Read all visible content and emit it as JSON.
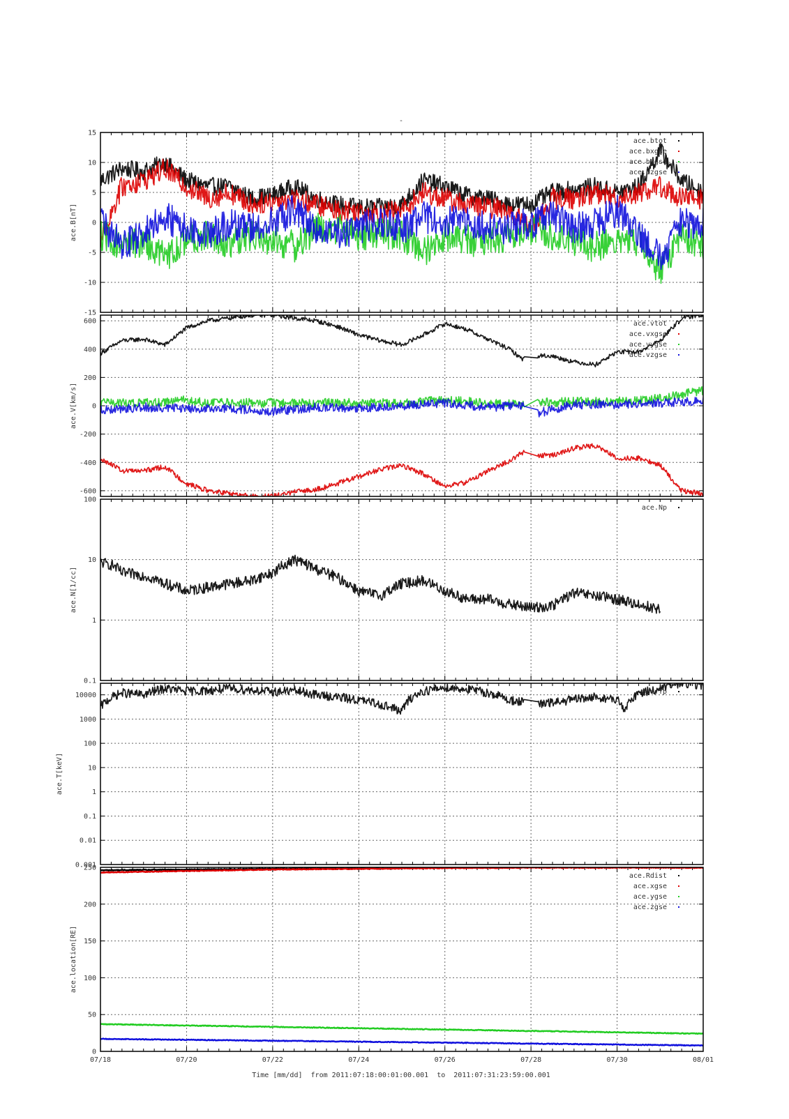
{
  "page": {
    "top_marker": "-",
    "footer": {
      "prefix": "Time [mm/dd]",
      "from_word": "from",
      "from_value": "2011:07:18:00:01:00.001",
      "to_word": "to",
      "to_value": "2011:07:31:23:59:00.001"
    }
  },
  "colors": {
    "black": "#000000",
    "red": "#dd0000",
    "green": "#22cc22",
    "blue": "#1111dd",
    "grid": "#666666"
  },
  "chart_data": [
    {
      "type": "scatter",
      "ylabel": "ace.B[nT]",
      "xlim": [
        "07/18",
        "08/01"
      ],
      "xticks": [
        "07/18",
        "07/20",
        "07/22",
        "07/24",
        "07/26",
        "07/28",
        "07/30",
        "08/01"
      ],
      "yscale": "linear",
      "ylim": [
        -15,
        15
      ],
      "yticks": [
        {
          "v": 15,
          "label": "15"
        },
        {
          "v": 10,
          "label": "10"
        },
        {
          "v": 5,
          "label": "5"
        },
        {
          "v": 0,
          "label": "0"
        },
        {
          "v": -5,
          "label": "-5"
        },
        {
          "v": -10,
          "label": "-10"
        },
        {
          "v": -15,
          "label": "-15"
        }
      ],
      "legend_position": "top-right",
      "series": [
        {
          "name": "ace.btot",
          "color": "black",
          "x": [
            0,
            0.5,
            1,
            1.5,
            2,
            2.5,
            3,
            3.5,
            4,
            4.5,
            5,
            5.5,
            6,
            6.5,
            7,
            7.5,
            8,
            8.5,
            9,
            9.5,
            10,
            10.5,
            11,
            11.5,
            12,
            12.5,
            13,
            13.5,
            14
          ],
          "y": [
            7,
            9,
            8.5,
            10,
            7,
            6,
            6,
            4,
            4.5,
            6,
            4,
            3,
            2.5,
            2.5,
            3,
            7,
            6,
            4.5,
            4,
            3,
            3,
            5,
            5.5,
            6,
            5,
            6,
            12,
            7,
            5
          ]
        },
        {
          "name": "ace.bxgse",
          "color": "red",
          "x": [
            0,
            0.5,
            1,
            1.5,
            2,
            2.5,
            3,
            3.5,
            4,
            4.5,
            5,
            5.5,
            6,
            6.5,
            7,
            7.5,
            8,
            8.5,
            9,
            9.5,
            10,
            10.5,
            11,
            11.5,
            12,
            12.5,
            13,
            13.5,
            14
          ],
          "y": [
            -3,
            6,
            7,
            9,
            6,
            4,
            5,
            3,
            3.5,
            4,
            3,
            2,
            2,
            1.5,
            2,
            5,
            4,
            3,
            2.5,
            2,
            -1,
            4,
            4,
            5,
            4,
            5,
            6,
            4,
            4
          ]
        },
        {
          "name": "ace.bygse",
          "color": "green",
          "x": [
            0,
            0.5,
            1,
            1.5,
            2,
            2.5,
            3,
            3.5,
            4,
            4.5,
            5,
            5.5,
            6,
            6.5,
            7,
            7.5,
            8,
            8.5,
            9,
            9.5,
            10,
            10.5,
            11,
            11.5,
            12,
            12.5,
            13,
            13.5,
            14
          ],
          "y": [
            -2,
            -4,
            -3,
            -6,
            -3,
            -2,
            -4,
            -2,
            -3,
            -4,
            -1,
            -1,
            -2,
            -2,
            -2,
            -5,
            -2,
            -3,
            -3,
            -2,
            -1,
            -2,
            -3,
            -4,
            -3,
            -3,
            -8,
            -2,
            -4
          ]
        },
        {
          "name": "ace.bzgse",
          "color": "blue",
          "x": [
            0,
            0.5,
            1,
            1.5,
            2,
            2.5,
            3,
            3.5,
            4,
            4.5,
            5,
            5.5,
            6,
            6.5,
            7,
            7.5,
            8,
            8.5,
            9,
            9.5,
            10,
            10.5,
            11,
            11.5,
            12,
            12.5,
            13,
            13.5,
            14
          ],
          "y": [
            0,
            -4,
            -2,
            1,
            -1,
            -2,
            0,
            -1,
            0,
            2,
            -1,
            -2,
            -1,
            0,
            -1,
            1,
            0,
            0,
            -1,
            -1,
            0,
            1,
            -1,
            0,
            2,
            -2,
            -6,
            0,
            0
          ]
        }
      ]
    },
    {
      "type": "scatter",
      "ylabel": "ace.V[km/s]",
      "xlim": [
        "07/18",
        "08/01"
      ],
      "xticks": [
        "07/18",
        "07/20",
        "07/22",
        "07/24",
        "07/26",
        "07/28",
        "07/30",
        "08/01"
      ],
      "yscale": "linear",
      "ylim": [
        -640,
        640
      ],
      "yticks": [
        {
          "v": 600,
          "label": "600"
        },
        {
          "v": 400,
          "label": "400"
        },
        {
          "v": 200,
          "label": "200"
        },
        {
          "v": 0,
          "label": "0"
        },
        {
          "v": -200,
          "label": "-200"
        },
        {
          "v": -400,
          "label": "-400"
        },
        {
          "v": -600,
          "label": "-600"
        }
      ],
      "legend_position": "top-right",
      "series": [
        {
          "name": "ace.vtot",
          "color": "black",
          "x": [
            0,
            0.5,
            1,
            1.5,
            2,
            2.5,
            3,
            3.5,
            4,
            4.5,
            5,
            5.5,
            6,
            6.5,
            7,
            7.5,
            8,
            8.5,
            9,
            9.5,
            9.8,
            10.2,
            10.5,
            11,
            11.5,
            12,
            12.5,
            13,
            13.5,
            14
          ],
          "y": [
            370,
            460,
            470,
            430,
            550,
            600,
            620,
            640,
            640,
            620,
            600,
            560,
            500,
            460,
            430,
            500,
            580,
            540,
            470,
            400,
            330,
            355,
            350,
            310,
            290,
            380,
            380,
            460,
            620,
            640
          ]
        },
        {
          "name": "ace.vxgse",
          "color": "red",
          "x": [
            0,
            0.5,
            1,
            1.5,
            2,
            2.5,
            3,
            3.5,
            4,
            4.5,
            5,
            5.5,
            6,
            6.5,
            7,
            7.5,
            8,
            8.5,
            9,
            9.5,
            9.8,
            10.2,
            10.5,
            11,
            11.5,
            12,
            12.5,
            13,
            13.5,
            14
          ],
          "y": [
            -370,
            -460,
            -460,
            -430,
            -550,
            -600,
            -620,
            -640,
            -640,
            -610,
            -590,
            -550,
            -500,
            -450,
            -420,
            -480,
            -570,
            -540,
            -460,
            -390,
            -330,
            -350,
            -350,
            -300,
            -280,
            -370,
            -370,
            -420,
            -600,
            -620
          ]
        },
        {
          "name": "ace.vygse",
          "color": "green",
          "x": [
            0,
            1,
            2,
            2.5,
            3,
            4,
            5,
            6,
            7,
            8,
            9,
            9.8,
            10.2,
            11,
            12,
            13,
            14
          ],
          "y": [
            20,
            20,
            40,
            20,
            20,
            20,
            20,
            20,
            20,
            40,
            20,
            10,
            20,
            30,
            30,
            50,
            110
          ]
        },
        {
          "name": "ace.vzgse",
          "color": "blue",
          "x": [
            0,
            1,
            2,
            3,
            4,
            5,
            6,
            7,
            8,
            9,
            9.8,
            10.2,
            11,
            12,
            13,
            14
          ],
          "y": [
            -30,
            -10,
            -20,
            -20,
            -40,
            -10,
            -20,
            0,
            20,
            -10,
            0,
            -50,
            10,
            10,
            20,
            40
          ]
        }
      ]
    },
    {
      "type": "scatter",
      "ylabel": "ace.N[1/cc]",
      "xlim": [
        "07/18",
        "08/01"
      ],
      "xticks": [
        "07/18",
        "07/20",
        "07/22",
        "07/24",
        "07/26",
        "07/28",
        "07/30",
        "08/01"
      ],
      "yscale": "log",
      "ylim": [
        0.1,
        100
      ],
      "yticks": [
        {
          "v": 100,
          "label": "100"
        },
        {
          "v": 10,
          "label": "10"
        },
        {
          "v": 1,
          "label": "1"
        },
        {
          "v": 0.1,
          "label": "0.1"
        }
      ],
      "legend_position": "top-right",
      "series": [
        {
          "name": "ace.Np",
          "color": "black",
          "x": [
            0,
            0.3,
            0.5,
            1,
            1.5,
            2,
            2.5,
            3,
            3.5,
            4,
            4.5,
            5,
            5.5,
            6,
            6.5,
            7,
            7.5,
            8,
            8.5,
            9,
            9.5,
            10,
            10.5,
            11,
            11.5,
            12,
            12.5,
            13
          ],
          "y": [
            9,
            8,
            6,
            5.5,
            4,
            3,
            3.5,
            4,
            4.5,
            6,
            10,
            7,
            5,
            3,
            2.5,
            4,
            4.5,
            3,
            2.2,
            2.2,
            1.8,
            1.6,
            1.7,
            2.8,
            2.5,
            2.2,
            1.8,
            1.5
          ]
        }
      ]
    },
    {
      "type": "scatter",
      "ylabel": "ace.T[keV]",
      "xlim": [
        "07/18",
        "08/01"
      ],
      "xticks": [
        "07/18",
        "07/20",
        "07/22",
        "07/24",
        "07/26",
        "07/28",
        "07/30",
        "08/01"
      ],
      "yscale": "log",
      "ylim": [
        0.001,
        30000
      ],
      "yticks": [
        {
          "v": 10000,
          "label": "10000"
        },
        {
          "v": 1000,
          "label": "1000"
        },
        {
          "v": 100,
          "label": "100"
        },
        {
          "v": 10,
          "label": "10"
        },
        {
          "v": 1,
          "label": "1"
        },
        {
          "v": 0.1,
          "label": "0.1"
        },
        {
          "v": 0.01,
          "label": "0.01"
        },
        {
          "v": 0.001,
          "label": "0.001"
        }
      ],
      "legend_position": "top-right",
      "series": [
        {
          "name": "ace.Tp",
          "color": "black",
          "x": [
            0,
            0.5,
            1,
            1.5,
            2,
            2.5,
            3,
            3.5,
            4,
            4.5,
            5,
            5.5,
            6,
            6.5,
            7,
            7.5,
            8,
            8.5,
            9,
            9.5,
            10.2,
            10.6,
            11.5,
            12,
            12.2,
            12.5,
            13,
            13.5,
            14
          ],
          "y": [
            3000,
            12000,
            10000,
            18000,
            14000,
            15000,
            18000,
            16000,
            13000,
            15000,
            10000,
            8000,
            6000,
            4000,
            2000,
            14000,
            20000,
            17000,
            12000,
            6000,
            4000,
            5000,
            8000,
            6000,
            2000,
            12000,
            17000,
            30000,
            25000
          ]
        }
      ]
    },
    {
      "type": "scatter",
      "ylabel": "ace.location[RE]",
      "xlabel": "Time [mm/dd]",
      "xlim": [
        "07/18",
        "08/01"
      ],
      "xticks": [
        "07/18",
        "07/20",
        "07/22",
        "07/24",
        "07/26",
        "07/28",
        "07/30",
        "08/01"
      ],
      "yscale": "linear",
      "ylim": [
        0,
        250
      ],
      "yticks": [
        {
          "v": 250,
          "label": "250"
        },
        {
          "v": 200,
          "label": "200"
        },
        {
          "v": 150,
          "label": "150"
        },
        {
          "v": 100,
          "label": "100"
        },
        {
          "v": 50,
          "label": "50"
        },
        {
          "v": 0,
          "label": "0"
        }
      ],
      "legend_position": "top-right",
      "series": [
        {
          "name": "ace.Rdist",
          "color": "black",
          "x": [
            0,
            2,
            4,
            6,
            8,
            10,
            12,
            14
          ],
          "y": [
            246,
            247,
            248,
            249,
            249.5,
            250,
            250,
            250
          ]
        },
        {
          "name": "ace.xgse",
          "color": "red",
          "x": [
            0,
            2,
            4,
            6,
            8,
            10,
            12,
            14
          ],
          "y": [
            243,
            245,
            247,
            248,
            249,
            249.5,
            249.5,
            249.5
          ]
        },
        {
          "name": "ace.ygse",
          "color": "green",
          "x": [
            0,
            14
          ],
          "y": [
            37,
            24
          ]
        },
        {
          "name": "ace.zgse",
          "color": "blue",
          "x": [
            0,
            14
          ],
          "y": [
            17,
            8
          ]
        }
      ]
    }
  ]
}
